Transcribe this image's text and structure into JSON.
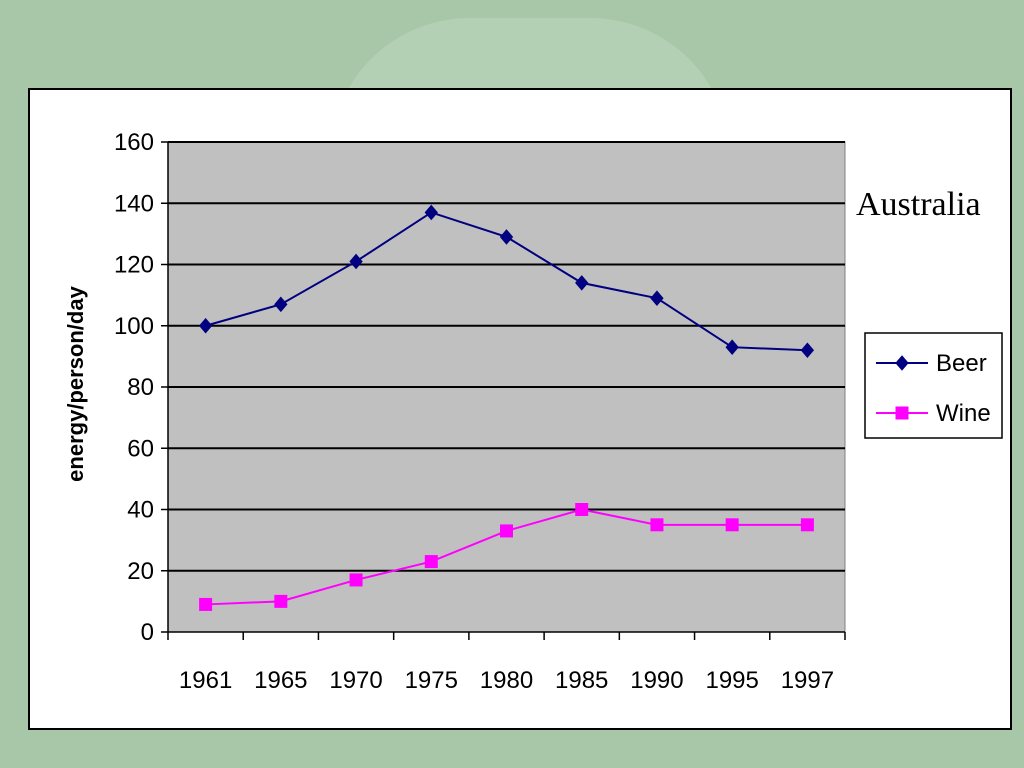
{
  "background_color": "#a8c6a8",
  "chart_data": {
    "type": "line",
    "title": "",
    "subtitle": "Australia",
    "xlabel": "",
    "ylabel": "energy/person/day",
    "categories": [
      "1961",
      "1965",
      "1970",
      "1975",
      "1980",
      "1985",
      "1990",
      "1995",
      "1997"
    ],
    "ylim": [
      0,
      160
    ],
    "yticks": [
      0,
      20,
      40,
      60,
      80,
      100,
      120,
      140,
      160
    ],
    "grid": "horizontal",
    "plot_background": "#c0c0c0",
    "legend_position": "right",
    "series": [
      {
        "name": "Beer",
        "color": "#000080",
        "marker": "diamond",
        "values": [
          100,
          107,
          121,
          137,
          129,
          114,
          109,
          93,
          92
        ]
      },
      {
        "name": "Wine",
        "color": "#ff00ff",
        "marker": "square",
        "values": [
          9,
          10,
          17,
          23,
          33,
          40,
          35,
          35,
          35
        ]
      }
    ]
  }
}
